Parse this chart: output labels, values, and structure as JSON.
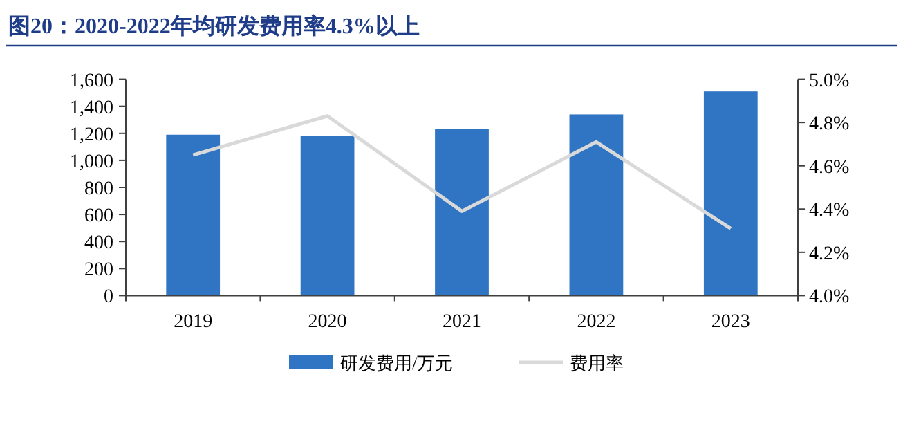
{
  "chart_data": {
    "type": "bar",
    "title": "图20：2020-2022年均研发费用率4.3%以上",
    "categories": [
      "2019",
      "2020",
      "2021",
      "2022",
      "2023"
    ],
    "series": [
      {
        "name": "研发费用/万元",
        "color": "#3074c4",
        "values": [
          1190,
          1180,
          1230,
          1340,
          1510
        ]
      },
      {
        "name": "费用率",
        "type": "line",
        "axis": "y2",
        "color": "#d9d9d9",
        "values": [
          4.65,
          4.83,
          4.39,
          4.71,
          4.31
        ]
      }
    ],
    "ylim": [
      0,
      1600
    ],
    "yticks": [
      0,
      200,
      400,
      600,
      800,
      {
        "value": 1000,
        "label": "1,000"
      },
      {
        "value": 1200,
        "label": "1,200"
      },
      {
        "value": 1400,
        "label": "1,400"
      },
      {
        "value": 1600,
        "label": "1,600"
      }
    ],
    "y2lim": [
      4.0,
      5.0
    ],
    "y2ticks": [
      {
        "value": 4.0,
        "label": "4.0%"
      },
      {
        "value": 4.2,
        "label": "4.2%"
      },
      {
        "value": 4.4,
        "label": "4.4%"
      },
      {
        "value": 4.6,
        "label": "4.6%"
      },
      {
        "value": 4.8,
        "label": "4.8%"
      },
      {
        "value": 5.0,
        "label": "5.0%"
      }
    ],
    "grid": false,
    "legend": "bottom"
  }
}
